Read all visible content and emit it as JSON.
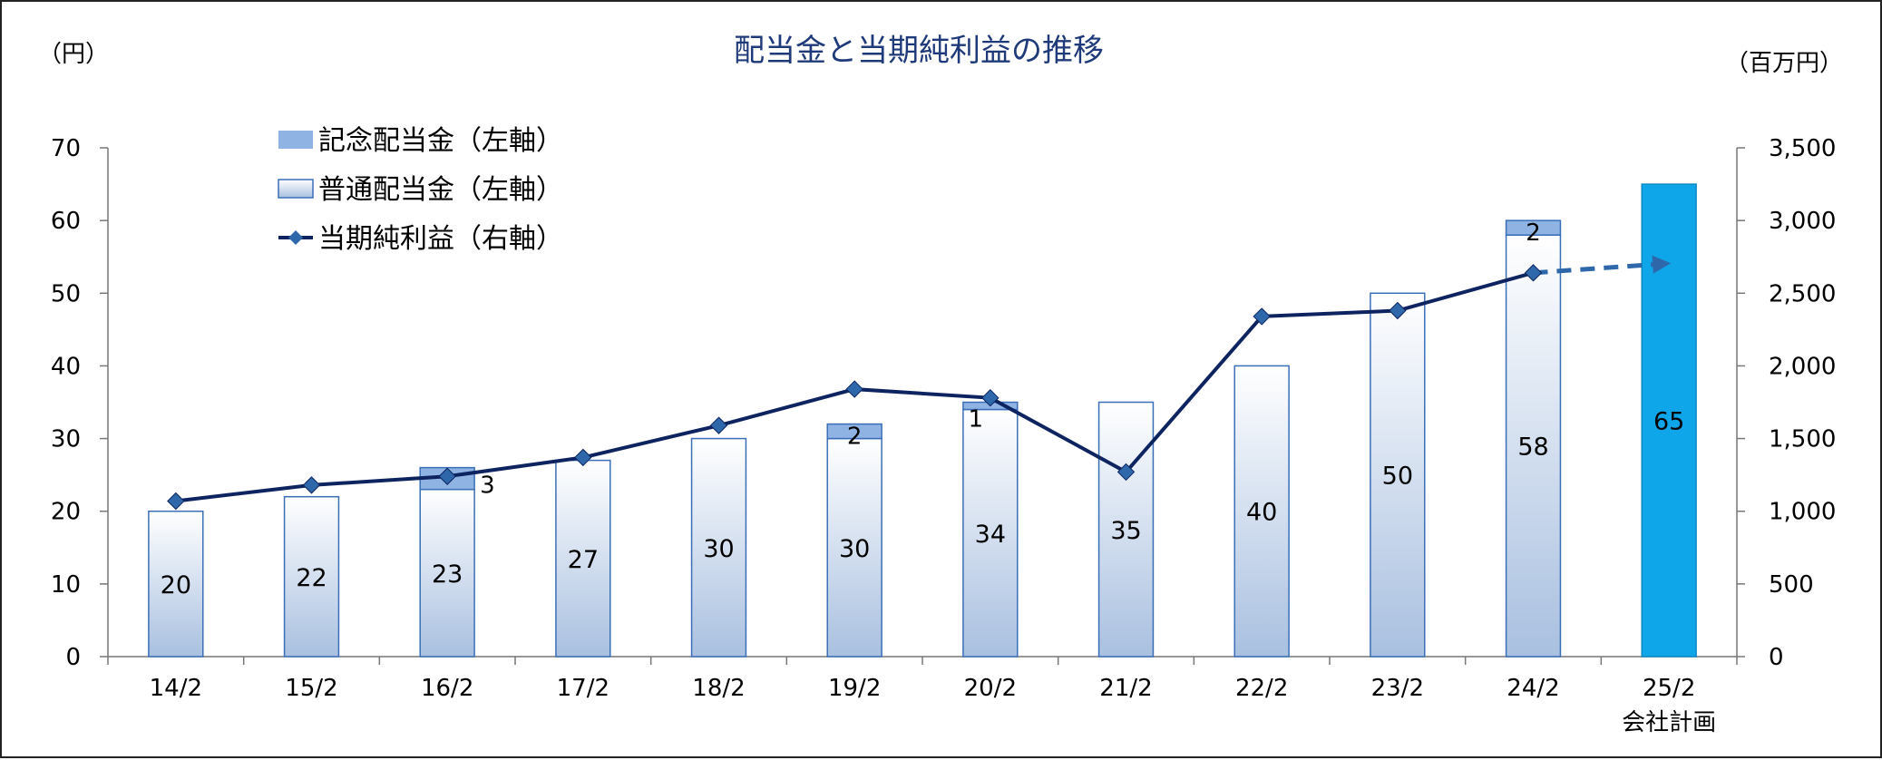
{
  "chart_data": {
    "type": "bar",
    "title": "配当金と当期純利益の推移",
    "y_left_unit": "（円）",
    "y_right_unit": "（百万円）",
    "categories": [
      "14/2",
      "15/2",
      "16/2",
      "17/2",
      "18/2",
      "19/2",
      "20/2",
      "21/2",
      "22/2",
      "23/2",
      "24/2",
      "25/2"
    ],
    "category_sublabels": [
      "",
      "",
      "",
      "",
      "",
      "",
      "",
      "",
      "",
      "",
      "",
      "会社計画"
    ],
    "y_left_ticks": [
      "0",
      "10",
      "20",
      "30",
      "40",
      "50",
      "60",
      "70"
    ],
    "y_right_ticks": [
      "0",
      "500",
      "1,000",
      "1,500",
      "2,000",
      "2,500",
      "3,000",
      "3,500"
    ],
    "ylim_left": [
      0,
      70
    ],
    "ylim_right": [
      0,
      3500
    ],
    "series": [
      {
        "name": "普通配当金（左軸）",
        "axis": "left",
        "kind": "bar",
        "values": [
          20,
          22,
          23,
          27,
          30,
          30,
          34,
          35,
          40,
          50,
          58,
          null
        ],
        "labels": [
          "20",
          "22",
          "23",
          "27",
          "30",
          "30",
          "34",
          "35",
          "40",
          "50",
          "58",
          ""
        ]
      },
      {
        "name": "記念配当金（左軸）",
        "axis": "left",
        "kind": "bar-stacked",
        "values": [
          0,
          0,
          3,
          0,
          0,
          2,
          1,
          0,
          0,
          0,
          2,
          null
        ],
        "labels": [
          "",
          "",
          "3",
          "",
          "",
          "2",
          "1",
          "",
          "",
          "",
          "2",
          ""
        ]
      },
      {
        "name": "",
        "axis": "left",
        "kind": "bar-plan",
        "values": [
          null,
          null,
          null,
          null,
          null,
          null,
          null,
          null,
          null,
          null,
          null,
          65
        ],
        "labels": [
          "",
          "",
          "",
          "",
          "",
          "",
          "",
          "",
          "",
          "",
          "",
          "65"
        ]
      },
      {
        "name": "当期純利益（右軸）",
        "axis": "right",
        "kind": "line",
        "values": [
          1070,
          1180,
          1240,
          1370,
          1590,
          1840,
          1780,
          1270,
          2340,
          2380,
          2640,
          2700
        ]
      }
    ],
    "legend": [
      {
        "label": "記念配当金（左軸）",
        "swatch": "commemorative"
      },
      {
        "label": "普通配当金（左軸）",
        "swatch": "ordinary"
      },
      {
        "label": "当期純利益（右軸）",
        "swatch": "line"
      }
    ],
    "legend_position": "top-left",
    "grid": false,
    "colors": {
      "ordinary_top": "#ffffff",
      "ordinary_bottom": "#a9c0e0",
      "ordinary_border": "#3a6fb8",
      "commemorative": "#8fb3e3",
      "plan": "#0ea5e9",
      "line": "#0d2460",
      "marker": "#2e68aa",
      "forecast_dash": "#2e68aa",
      "title": "#1f3a7a"
    }
  }
}
